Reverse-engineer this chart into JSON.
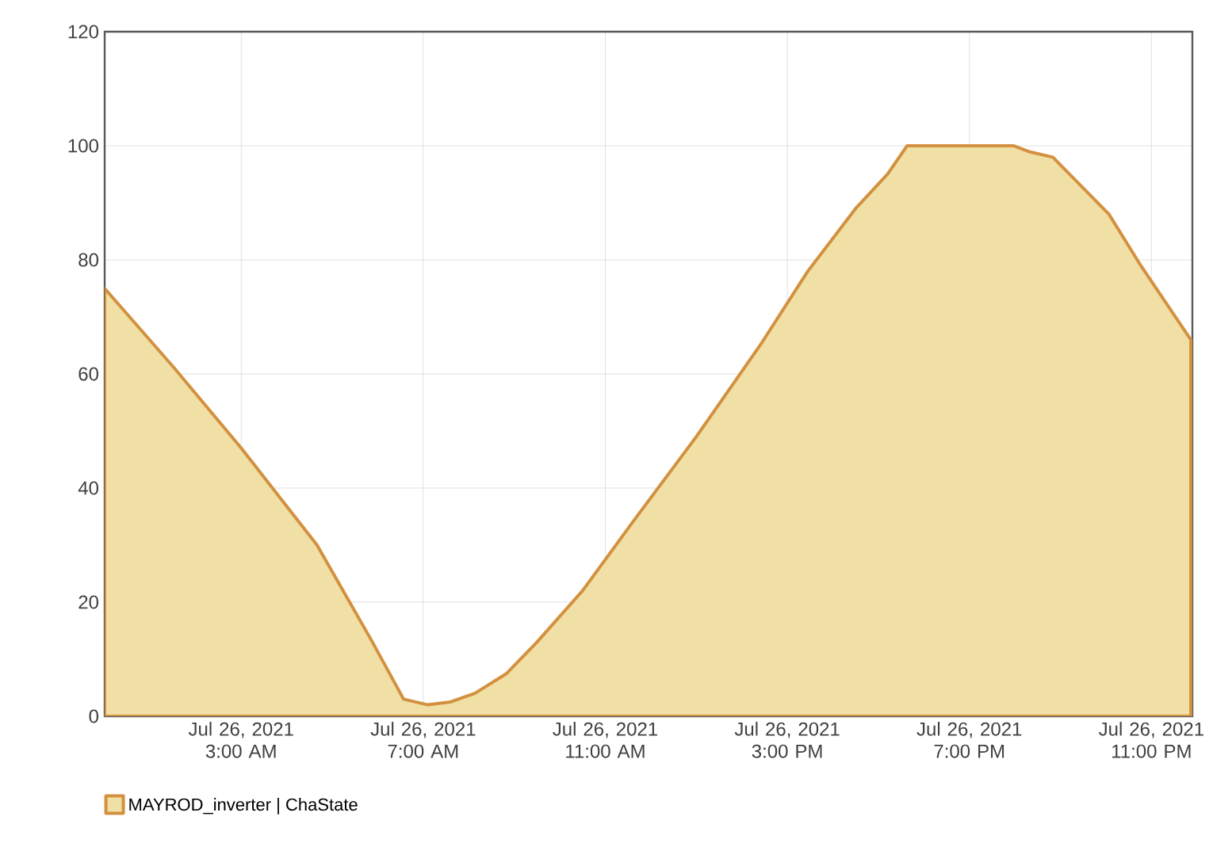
{
  "chart_data": {
    "type": "area",
    "x": [
      "2021-07-26T00:00",
      "2021-07-26T01:32",
      "2021-07-26T03:00",
      "2021-07-26T04:40",
      "2021-07-26T05:53",
      "2021-07-26T06:34",
      "2021-07-26T07:06",
      "2021-07-26T07:36",
      "2021-07-26T08:08",
      "2021-07-26T08:50",
      "2021-07-26T09:30",
      "2021-07-26T10:30",
      "2021-07-26T11:36",
      "2021-07-26T13:00",
      "2021-07-26T14:24",
      "2021-07-26T15:27",
      "2021-07-26T16:30",
      "2021-07-26T17:12",
      "2021-07-26T17:38",
      "2021-07-26T19:18",
      "2021-07-26T19:58",
      "2021-07-26T20:18",
      "2021-07-26T20:50",
      "2021-07-26T22:04",
      "2021-07-26T22:46",
      "2021-07-26T23:52"
    ],
    "series": [
      {
        "name": "MAYROD_inverter | ChaState",
        "color": "#f0e0a6",
        "values": [
          75,
          61,
          47,
          30,
          13,
          3,
          2,
          2.5,
          4,
          7.5,
          13,
          22,
          34,
          49,
          65,
          78,
          89,
          95,
          100,
          100,
          100,
          99,
          98,
          88,
          79,
          66
        ]
      }
    ],
    "xlim": [
      "2021-07-26T00:00",
      "2021-07-26T23:54"
    ],
    "xticks": [
      {
        "value": "2021-07-26T03:00",
        "label": "Jul 26, 2021 3:00 AM"
      },
      {
        "value": "2021-07-26T07:00",
        "label": "Jul 26, 2021 7:00 AM"
      },
      {
        "value": "2021-07-26T11:00",
        "label": "Jul 26, 2021 11:00 AM"
      },
      {
        "value": "2021-07-26T15:00",
        "label": "Jul 26, 2021 3:00 PM"
      },
      {
        "value": "2021-07-26T19:00",
        "label": "Jul 26, 2021 7:00 PM"
      },
      {
        "value": "2021-07-26T23:00",
        "label": "Jul 26, 2021 11:00 PM"
      }
    ],
    "ylim": [
      0,
      120
    ],
    "yticks": [
      0,
      20,
      40,
      60,
      80,
      100,
      120
    ],
    "grid": true,
    "legend": "bottom left"
  }
}
